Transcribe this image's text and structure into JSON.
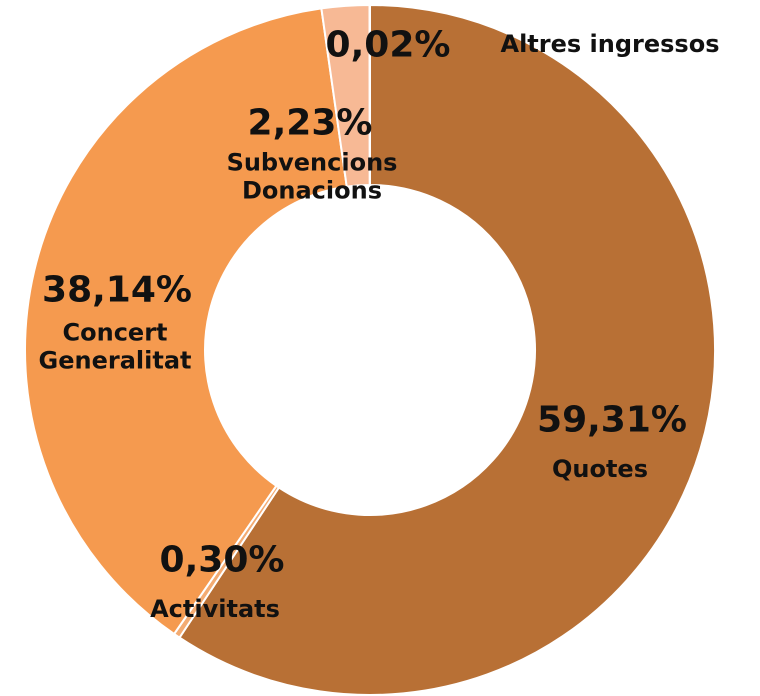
{
  "chart_data": {
    "type": "donut",
    "categories": [
      "Quotes",
      "Activitats",
      "Concert Generalitat",
      "Subvencions Donacions",
      "Altres ingressos"
    ],
    "values": [
      59.31,
      0.3,
      38.14,
      2.23,
      0.02
    ],
    "value_labels": [
      "59,31%",
      "0,30%",
      "38,14%",
      "2,23%",
      "0,02%"
    ],
    "colors": [
      "#b87035",
      "#f3ab72",
      "#f59a4f",
      "#f7b995",
      "#f0cfb6"
    ]
  }
}
